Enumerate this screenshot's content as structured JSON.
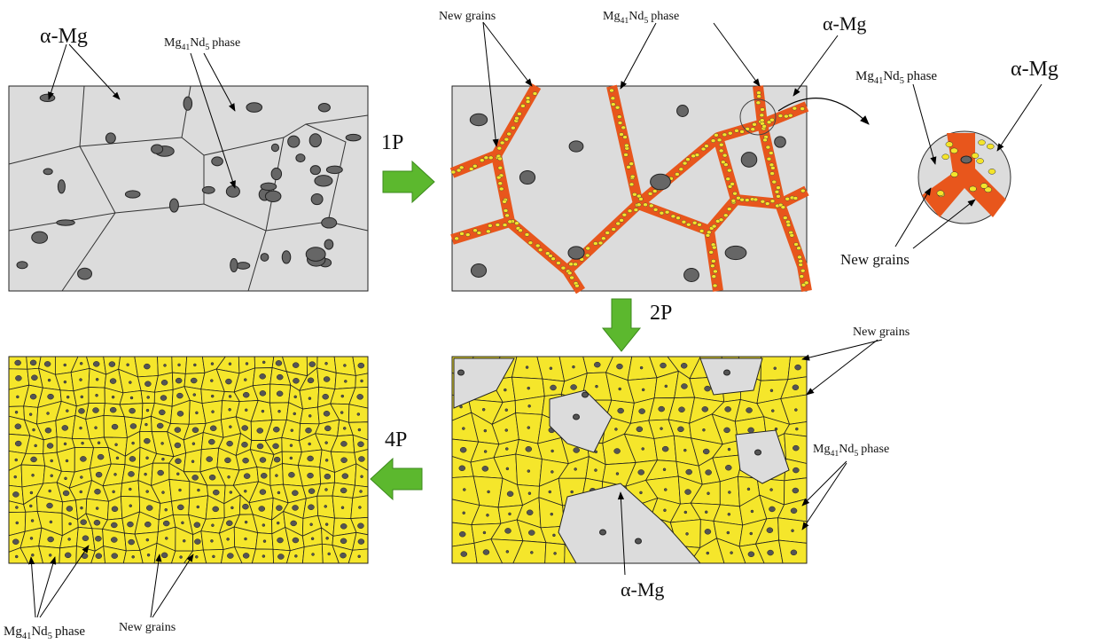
{
  "steps": [
    "1P",
    "2P",
    "4P"
  ],
  "panels": [
    [
      "α-Mg",
      [
        "Mg",
        "41",
        "Nd",
        "5",
        "phase"
      ]
    ],
    [
      "New grains",
      [
        "Mg",
        "41",
        "Nd",
        "5",
        "phase"
      ],
      "α-Mg"
    ],
    [
      [
        "Mg",
        "41",
        "Nd",
        "5",
        "phase"
      ],
      "α-Mg",
      "New grains"
    ],
    [
      "New grains",
      [
        "Mg",
        "41",
        "Nd",
        "5",
        "phase"
      ],
      "α-Mg"
    ],
    [
      [
        "Mg",
        "41",
        "Nd",
        "5",
        "phase"
      ],
      "New grains"
    ]
  ]
}
